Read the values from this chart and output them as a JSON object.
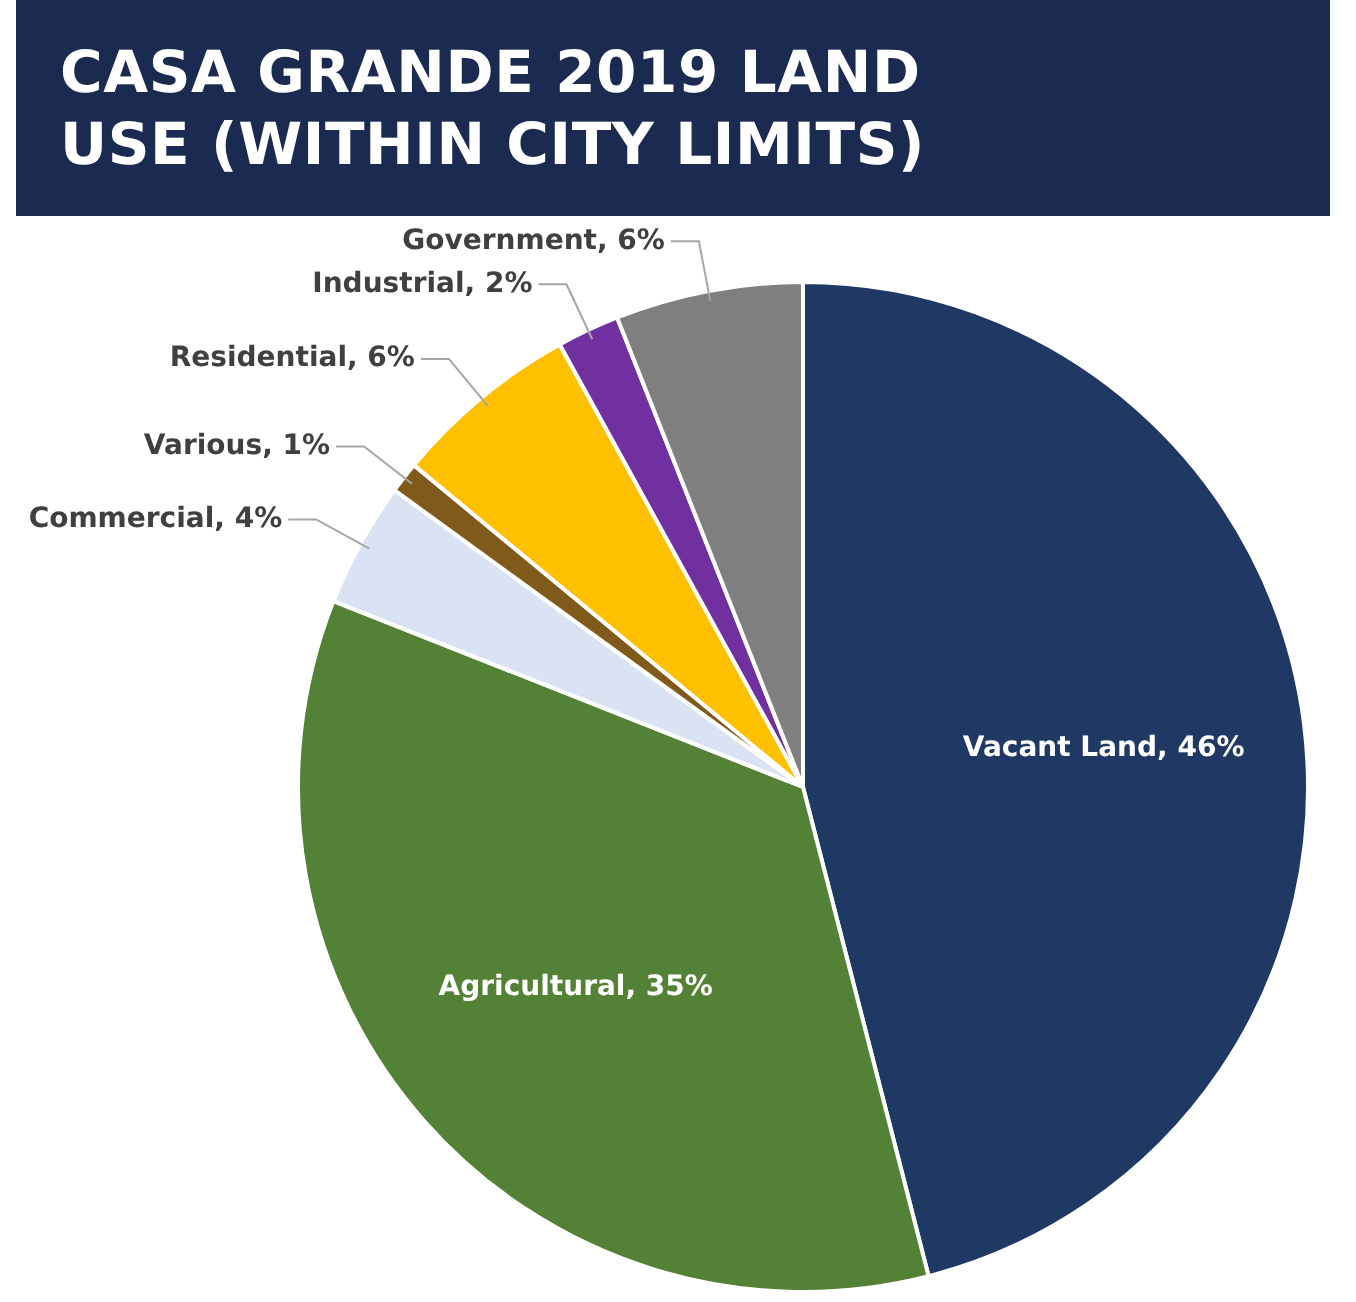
{
  "chart_data": {
    "type": "pie",
    "title": "CASA GRANDE 2019 LAND USE (WITHIN CITY LIMITS)",
    "categories": [
      "Vacant Land",
      "Agricultural",
      "Commercial",
      "Various",
      "Residential",
      "Industrial",
      "Government"
    ],
    "values": [
      46,
      35,
      4,
      1,
      6,
      2,
      6
    ],
    "value_labels": [
      "46%",
      "35%",
      "4%",
      "1%",
      "6%",
      "2%",
      "6%"
    ],
    "colors": [
      "#1f3864",
      "#538135",
      "#dae3f3",
      "#7f5a1a",
      "#ffc000",
      "#7030a0",
      "#7f7f7f"
    ],
    "legend": false
  }
}
